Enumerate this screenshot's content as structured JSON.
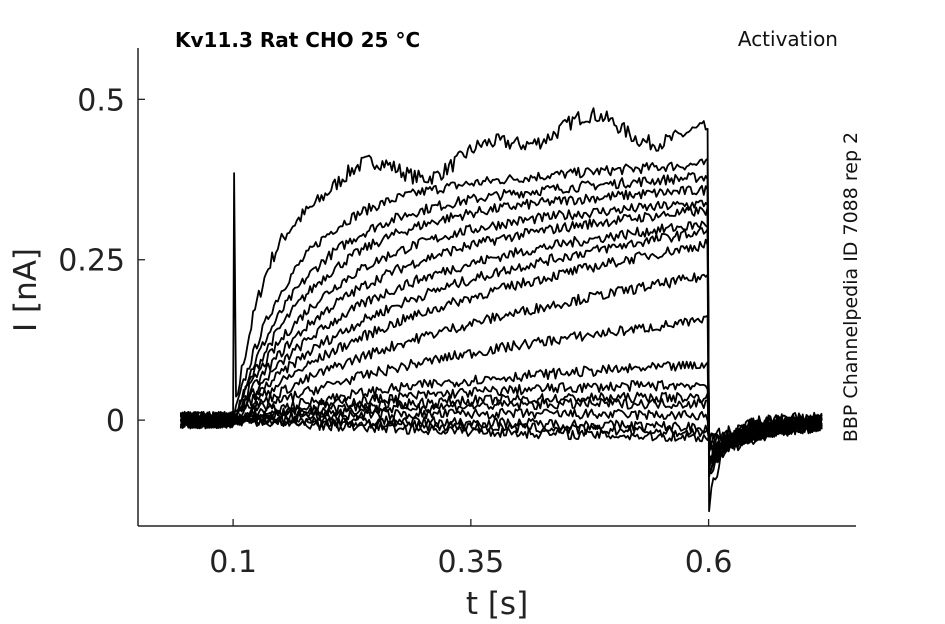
{
  "chart_data": {
    "type": "line",
    "title": "Kv11.3  Rat  CHO  25 °C",
    "protocol": "Activation",
    "side_label": "BBP Channelpedia ID 7088 rep 2",
    "xlabel": "t [s]",
    "ylabel": "I [nA]",
    "xlim": [
      -0.0,
      0.755
    ],
    "ylim": [
      -0.165,
      0.58
    ],
    "xticks": [
      0.1,
      0.35,
      0.6
    ],
    "xtick_labels": [
      "0.1",
      "0.35",
      "0.6"
    ],
    "yticks": [
      0,
      0.25,
      0.5
    ],
    "ytick_labels": [
      "0",
      "0.25",
      "0.5"
    ],
    "grid": false,
    "line_color": "#000000",
    "pulse_start": 0.1,
    "pulse_end": 0.6,
    "trace_end": 0.72,
    "series_levels": [
      {
        "start": 0.39,
        "end": 0.46
      },
      {
        "start": 0.35,
        "end": 0.4
      },
      {
        "start": 0.33,
        "end": 0.38
      },
      {
        "start": 0.32,
        "end": 0.36
      },
      {
        "start": 0.3,
        "end": 0.34
      },
      {
        "start": 0.27,
        "end": 0.33
      },
      {
        "start": 0.24,
        "end": 0.31
      },
      {
        "start": 0.2,
        "end": 0.3
      },
      {
        "start": 0.16,
        "end": 0.28
      },
      {
        "start": 0.12,
        "end": 0.23
      },
      {
        "start": 0.09,
        "end": 0.16
      },
      {
        "start": 0.07,
        "end": 0.09
      },
      {
        "start": 0.06,
        "end": 0.06
      },
      {
        "start": 0.05,
        "end": 0.04
      },
      {
        "start": 0.04,
        "end": 0.03
      },
      {
        "start": 0.03,
        "end": 0.01
      },
      {
        "start": 0.01,
        "end": -0.01
      },
      {
        "start": 0.0,
        "end": -0.02
      },
      {
        "start": -0.02,
        "end": -0.03
      }
    ]
  }
}
